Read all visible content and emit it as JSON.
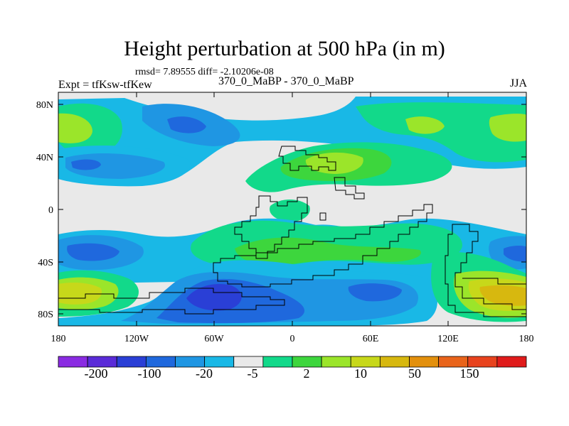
{
  "title": "Height perturbation at 500 hPa (in m)",
  "stats": "rmsd= 7.89555 diff= -2.10206e-08",
  "experiment": "Expt = tfKsw-tfKew",
  "period": "370_0_MaBP - 370_0_MaBP",
  "season": "JJA",
  "lat_labels": [
    "80N",
    "40N",
    "0",
    "40S",
    "80S"
  ],
  "lon_labels": [
    "180",
    "120W",
    "60W",
    "0",
    "60E",
    "120E",
    "180"
  ],
  "colorbar": {
    "labels": [
      "-200",
      "-100",
      "-20",
      "-5",
      "2",
      "10",
      "50",
      "150"
    ],
    "colors": [
      "#8a2be2",
      "#5a2bd8",
      "#2a3fd6",
      "#1f68dd",
      "#1f96e3",
      "#19b8e6",
      "#e9e9e9",
      "#12d98a",
      "#3dd63d",
      "#9be52a",
      "#c7d81a",
      "#d7b80f",
      "#e3900d",
      "#e9641b",
      "#e8431e",
      "#e01b1b"
    ]
  },
  "colors": {
    "neutral": "#e9e9e9",
    "lightblue": "#19b8e6",
    "blue2": "#1f96e3",
    "blue": "#1f68dd",
    "darkblue": "#2a3fd6",
    "green": "#12d98a",
    "green2": "#3dd63d",
    "yellowgreen": "#9be52a",
    "yellow": "#c7d81a",
    "orange": "#d7b80f"
  }
}
